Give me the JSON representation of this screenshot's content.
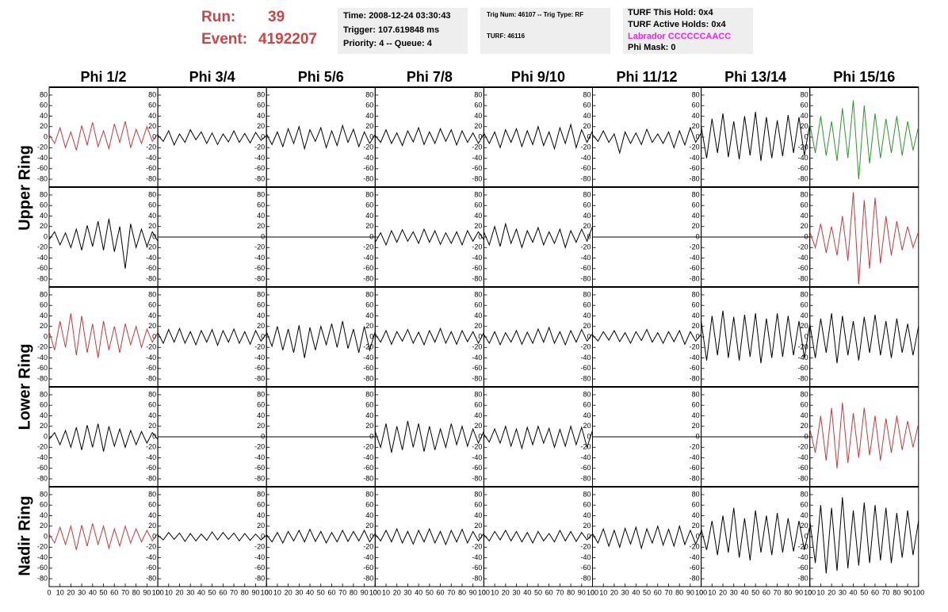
{
  "header": {
    "run_label": "Run:",
    "run": "39",
    "event_label": "Event:",
    "event": "4192207",
    "box1": [
      "Time: 2008-12-24 03:30:43",
      "Trigger: 107.619848 ms",
      "Priority: 4 -- Queue: 4"
    ],
    "box2": [
      "Trig Num: 46107 -- Trig Type: RF",
      "TURF: 46116"
    ],
    "box3": [
      "TURF This Hold: 0x4",
      "TURF Active Holds: 0x4",
      "Labrador CCCCCCAACC",
      "Phi Mask: 0"
    ]
  },
  "chart_data": {
    "type": "line",
    "columns": [
      "Phi 1/2",
      "Phi 3/4",
      "Phi 5/6",
      "Phi 7/8",
      "Phi 9/10",
      "Phi 11/12",
      "Phi 13/14",
      "Phi 15/16"
    ],
    "row_labels": [
      "Upper Ring",
      "Lower Ring",
      "Nadir Ring"
    ],
    "xlim": [
      0,
      100
    ],
    "xticks": [
      0,
      10,
      20,
      30,
      40,
      50,
      60,
      70,
      80,
      90,
      100
    ],
    "ylim": [
      -95,
      95
    ],
    "yticks": [
      -80,
      -60,
      -40,
      -20,
      0,
      20,
      40,
      60,
      80
    ],
    "x": [
      0,
      5,
      10,
      15,
      20,
      25,
      30,
      35,
      40,
      45,
      50,
      55,
      60,
      65,
      70,
      75,
      80,
      85,
      90,
      95,
      100
    ],
    "series": [
      {
        "color": "#c8383a",
        "values": [
          5,
          -12,
          18,
          -20,
          10,
          -25,
          22,
          -15,
          28,
          -18,
          12,
          -22,
          25,
          -10,
          30,
          -20,
          15,
          -12,
          20,
          -8,
          6
        ]
      },
      {
        "color": "#000000",
        "values": [
          4,
          -8,
          12,
          -15,
          6,
          -10,
          14,
          -5,
          10,
          -12,
          8,
          -14,
          6,
          -9,
          12,
          -10,
          7,
          -11,
          9,
          -6,
          3
        ]
      },
      {
        "color": "#000000",
        "values": [
          6,
          -14,
          10,
          -18,
          16,
          -12,
          20,
          -22,
          14,
          -8,
          18,
          -20,
          12,
          -16,
          22,
          -10,
          15,
          -18,
          10,
          -12,
          5
        ]
      },
      {
        "color": "#000000",
        "values": [
          3,
          -10,
          14,
          -12,
          8,
          -16,
          12,
          -9,
          18,
          -14,
          10,
          -12,
          16,
          -8,
          14,
          -15,
          12,
          -10,
          8,
          -12,
          6
        ]
      },
      {
        "color": "#000000",
        "values": [
          8,
          -12,
          10,
          -20,
          14,
          -10,
          16,
          -18,
          12,
          -14,
          20,
          -16,
          10,
          -22,
          18,
          -12,
          24,
          -20,
          14,
          -10,
          12
        ]
      },
      {
        "color": "#000000",
        "values": [
          5,
          -8,
          12,
          -10,
          6,
          -30,
          10,
          -12,
          8,
          -14,
          15,
          -10,
          6,
          -12,
          10,
          -20,
          12,
          -15,
          18,
          -10,
          8
        ]
      },
      {
        "color": "#000000",
        "values": [
          20,
          -40,
          35,
          -30,
          45,
          -38,
          30,
          -42,
          40,
          -35,
          48,
          -45,
          38,
          -40,
          32,
          -36,
          42,
          -30,
          38,
          -35,
          25
        ]
      },
      {
        "color": "#2a962a",
        "values": [
          25,
          -30,
          40,
          -35,
          30,
          -45,
          55,
          -40,
          70,
          -80,
          60,
          -50,
          45,
          -40,
          35,
          -30,
          40,
          -35,
          30,
          -25,
          20
        ]
      },
      {
        "color": "#000000",
        "values": [
          -5,
          10,
          -15,
          8,
          -20,
          15,
          -25,
          22,
          -18,
          30,
          -25,
          35,
          -28,
          20,
          -60,
          25,
          -20,
          15,
          -18,
          10,
          -8
        ]
      },
      {
        "color": "#000000",
        "values": [
          0,
          0,
          0,
          0,
          0,
          0,
          0,
          0,
          0,
          0,
          0,
          0,
          0,
          0,
          0,
          0,
          0,
          0,
          0,
          0,
          0
        ]
      },
      {
        "color": "#000000",
        "values": [
          0,
          0,
          0,
          0,
          0,
          0,
          0,
          0,
          0,
          0,
          0,
          0,
          0,
          0,
          0,
          0,
          0,
          0,
          0,
          0,
          0
        ]
      },
      {
        "color": "#000000",
        "values": [
          -10,
          8,
          -15,
          12,
          -10,
          14,
          -8,
          10,
          -12,
          15,
          -10,
          12,
          -14,
          8,
          -12,
          10,
          -15,
          12,
          -8,
          10,
          -5
        ]
      },
      {
        "color": "#000000",
        "values": [
          10,
          -15,
          20,
          -18,
          25,
          -12,
          15,
          -20,
          12,
          -10,
          18,
          -15,
          10,
          -12,
          15,
          -20,
          12,
          -10,
          15,
          -8,
          20
        ]
      },
      {
        "color": "#000000",
        "values": [
          0,
          0,
          0,
          0,
          0,
          0,
          0,
          0,
          0,
          0,
          0,
          0,
          0,
          0,
          0,
          0,
          0,
          0,
          0,
          0,
          0
        ]
      },
      {
        "color": "#000000",
        "values": [
          0,
          0,
          0,
          0,
          0,
          0,
          0,
          0,
          0,
          0,
          0,
          0,
          0,
          0,
          0,
          0,
          0,
          0,
          0,
          0,
          0
        ]
      },
      {
        "color": "#c8383a",
        "values": [
          10,
          -20,
          25,
          -30,
          20,
          -35,
          40,
          -45,
          85,
          -90,
          70,
          -60,
          75,
          -50,
          40,
          -35,
          30,
          -25,
          20,
          -20,
          10
        ]
      },
      {
        "color": "#c8383a",
        "values": [
          10,
          -25,
          30,
          -20,
          45,
          -35,
          40,
          -30,
          25,
          -40,
          30,
          -25,
          20,
          -30,
          25,
          -15,
          20,
          -20,
          15,
          -10,
          8
        ]
      },
      {
        "color": "#000000",
        "values": [
          8,
          -12,
          14,
          -10,
          16,
          -12,
          10,
          -15,
          12,
          -10,
          14,
          -16,
          12,
          -10,
          15,
          -12,
          10,
          -14,
          12,
          -8,
          6
        ]
      },
      {
        "color": "#000000",
        "values": [
          10,
          -18,
          20,
          -25,
          15,
          -30,
          22,
          -40,
          18,
          -25,
          20,
          -15,
          25,
          -20,
          30,
          -22,
          15,
          -30,
          20,
          -25,
          10
        ]
      },
      {
        "color": "#000000",
        "values": [
          6,
          -10,
          12,
          -14,
          10,
          -8,
          14,
          -12,
          9,
          -15,
          12,
          -10,
          16,
          -12,
          10,
          -14,
          12,
          -9,
          10,
          -12,
          8
        ]
      },
      {
        "color": "#000000",
        "values": [
          5,
          -12,
          10,
          -15,
          8,
          -10,
          12,
          -14,
          9,
          -12,
          15,
          -10,
          18,
          -12,
          10,
          -15,
          12,
          -10,
          14,
          -8,
          6
        ]
      },
      {
        "color": "#000000",
        "values": [
          4,
          -8,
          10,
          -6,
          12,
          -9,
          8,
          -12,
          10,
          -7,
          14,
          -10,
          8,
          -12,
          10,
          -9,
          12,
          -14,
          10,
          -8,
          5
        ]
      },
      {
        "color": "#000000",
        "values": [
          30,
          -45,
          40,
          -35,
          50,
          -40,
          38,
          -45,
          42,
          -38,
          45,
          -50,
          35,
          -40,
          45,
          -38,
          40,
          -35,
          30,
          -40,
          25
        ]
      },
      {
        "color": "#000000",
        "values": [
          25,
          -40,
          35,
          -30,
          45,
          -50,
          40,
          -35,
          30,
          -45,
          38,
          -30,
          42,
          -35,
          30,
          -40,
          35,
          -30,
          25,
          -35,
          20
        ]
      },
      {
        "color": "#000000",
        "values": [
          -5,
          8,
          -15,
          12,
          -20,
          18,
          -25,
          22,
          -20,
          25,
          -28,
          20,
          -18,
          15,
          -20,
          12,
          -15,
          10,
          -12,
          8,
          -5
        ]
      },
      {
        "color": "#000000",
        "values": [
          0,
          0,
          0,
          0,
          0,
          0,
          0,
          0,
          0,
          0,
          0,
          0,
          0,
          0,
          0,
          0,
          0,
          0,
          0,
          0,
          0
        ]
      },
      {
        "color": "#000000",
        "values": [
          0,
          0,
          0,
          0,
          0,
          0,
          0,
          0,
          0,
          0,
          0,
          0,
          0,
          0,
          0,
          0,
          0,
          0,
          0,
          0,
          0
        ]
      },
      {
        "color": "#000000",
        "values": [
          10,
          -20,
          25,
          -30,
          20,
          -25,
          30,
          -20,
          25,
          -28,
          20,
          -25,
          15,
          -20,
          25,
          -15,
          20,
          -18,
          15,
          -12,
          10
        ]
      },
      {
        "color": "#000000",
        "values": [
          5,
          -10,
          15,
          -12,
          20,
          -18,
          15,
          -22,
          18,
          -15,
          20,
          -12,
          16,
          -20,
          14,
          -18,
          20,
          -15,
          18,
          -20,
          12
        ]
      },
      {
        "color": "#000000",
        "values": [
          0,
          0,
          0,
          0,
          0,
          0,
          0,
          0,
          0,
          0,
          0,
          0,
          0,
          0,
          0,
          0,
          0,
          0,
          0,
          0,
          0
        ]
      },
      {
        "color": "#000000",
        "values": [
          0,
          0,
          0,
          0,
          0,
          0,
          0,
          0,
          0,
          0,
          0,
          0,
          0,
          0,
          0,
          0,
          0,
          0,
          0,
          0,
          0
        ]
      },
      {
        "color": "#c8383a",
        "values": [
          15,
          -30,
          40,
          -45,
          55,
          -60,
          65,
          -50,
          45,
          -40,
          55,
          -35,
          40,
          -45,
          35,
          -30,
          40,
          -25,
          30,
          -20,
          25
        ]
      },
      {
        "color": "#c8383a",
        "values": [
          5,
          -12,
          18,
          -15,
          20,
          -25,
          22,
          -18,
          25,
          -15,
          20,
          -22,
          15,
          -18,
          20,
          -12,
          15,
          -10,
          12,
          -8,
          6
        ]
      },
      {
        "color": "#000000",
        "values": [
          3,
          -6,
          8,
          -5,
          7,
          -9,
          6,
          -8,
          5,
          -7,
          9,
          -6,
          8,
          -5,
          7,
          -8,
          6,
          -7,
          5,
          -6,
          3
        ]
      },
      {
        "color": "#000000",
        "values": [
          4,
          -10,
          8,
          -12,
          10,
          -8,
          12,
          -10,
          14,
          -9,
          10,
          -12,
          8,
          -10,
          12,
          -9,
          10,
          -8,
          12,
          -10,
          6
        ]
      },
      {
        "color": "#000000",
        "values": [
          5,
          -8,
          12,
          -10,
          15,
          -12,
          10,
          -14,
          12,
          -10,
          15,
          -12,
          10,
          -15,
          12,
          -10,
          14,
          -12,
          10,
          -8,
          6
        ]
      },
      {
        "color": "#000000",
        "values": [
          4,
          -8,
          10,
          -6,
          12,
          -8,
          10,
          -10,
          8,
          -12,
          10,
          -8,
          6,
          -10,
          12,
          -8,
          10,
          -9,
          8,
          -6,
          5
        ]
      },
      {
        "color": "#000000",
        "values": [
          6,
          -12,
          15,
          -18,
          12,
          -20,
          16,
          -14,
          18,
          -22,
          15,
          -12,
          20,
          -16,
          14,
          -18,
          20,
          -15,
          12,
          -14,
          10
        ]
      },
      {
        "color": "#000000",
        "values": [
          15,
          -25,
          30,
          -35,
          40,
          -30,
          55,
          -40,
          35,
          -45,
          50,
          -30,
          40,
          -35,
          45,
          -30,
          35,
          -28,
          30,
          -25,
          20
        ]
      },
      {
        "color": "#000000",
        "values": [
          30,
          -50,
          60,
          -70,
          55,
          -65,
          75,
          -60,
          50,
          -55,
          65,
          -50,
          60,
          -45,
          55,
          -50,
          45,
          -40,
          50,
          -35,
          30
        ]
      }
    ]
  }
}
